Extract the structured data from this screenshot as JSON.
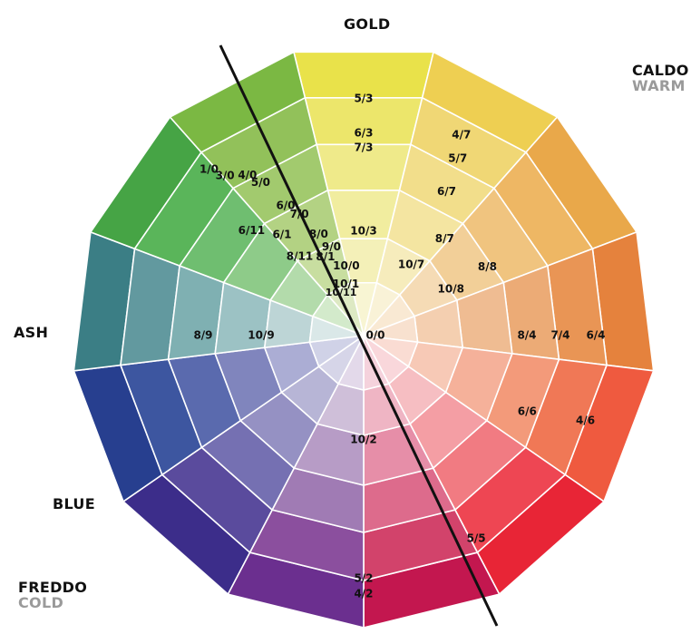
{
  "labels": {
    "gold": "GOLD",
    "caldo": "CALDO",
    "warm": "WARM",
    "ash": "ASH",
    "blue": "BLUE",
    "freddo": "FREDDO",
    "cold": "COLD"
  },
  "ring_colors": [
    [
      "#e9e24a",
      "#eecf52",
      "#e9a84a",
      "#e5823d",
      "#ef5a3f",
      "#e82536",
      "#c3174f",
      "#6b2f8f",
      "#3c2d8a",
      "#273f8f",
      "#3b7e85",
      "#46a445",
      "#7bb843"
    ],
    [
      "#ece66b",
      "#f0d775",
      "#eeb764",
      "#e99555",
      "#f07856",
      "#ee4653",
      "#d2436b",
      "#8b4f9e",
      "#5a4b9d",
      "#3d56a0",
      "#62999f",
      "#5ab55a",
      "#92c15a"
    ],
    [
      "#efea8a",
      "#f2de8b",
      "#f0c47f",
      "#ecab76",
      "#f39a7a",
      "#f17b82",
      "#dd6b8c",
      "#a07bb4",
      "#7570b2",
      "#5a6aae",
      "#7fb0b2",
      "#6fbe70",
      "#a2ca6e"
    ],
    [
      "#f1ed9f",
      "#f4e5a1",
      "#f2cf98",
      "#efbc92",
      "#f5b19a",
      "#f49ea4",
      "#e68ea8",
      "#b79cc6",
      "#9591c3",
      "#8085bd",
      "#9cc2c4",
      "#8ecb89",
      "#b3d283"
    ],
    [
      "#f4f0b8",
      "#f6ecbc",
      "#f5dbb5",
      "#f4cfb0",
      "#f7c9b6",
      "#f6bec2",
      "#efb5c4",
      "#cfbfd9",
      "#b7b5d6",
      "#abadd4",
      "#bdd5d6",
      "#b3dbab",
      "#c8dea0"
    ],
    [
      "#f8f5d3",
      "#f9f2d7",
      "#f9e9d3",
      "#f8e1cf",
      "#fadcd3",
      "#f9d7db",
      "#f5d2dc",
      "#e3d9ea",
      "#d6d5e8",
      "#d0d2e7",
      "#dae8e8",
      "#d3eacb",
      "#dde9c3"
    ]
  ],
  "ring_radii": [
    322,
    270,
    217,
    165,
    110,
    60
  ],
  "codes": [
    {
      "t": "1/0",
      "a": -43,
      "r": 250
    },
    {
      "t": "3/0",
      "a": -41,
      "r": 233
    },
    {
      "t": "4/0",
      "a": -36,
      "r": 218
    },
    {
      "t": "5/0",
      "a": -34,
      "r": 203
    },
    {
      "t": "6/0",
      "a": -31,
      "r": 167
    },
    {
      "t": "7/0",
      "a": -28,
      "r": 151
    },
    {
      "t": "8/0",
      "a": -24,
      "r": 122
    },
    {
      "t": "9/0",
      "a": -20,
      "r": 104
    },
    {
      "t": "10/0",
      "a": -14,
      "r": 79
    },
    {
      "t": "10/1",
      "a": -19,
      "r": 60
    },
    {
      "t": "10/11",
      "a": -28,
      "r": 53
    },
    {
      "t": "8/1",
      "a": -26,
      "r": 96
    },
    {
      "t": "6/1",
      "a": -39,
      "r": 143
    },
    {
      "t": "6/11",
      "a": -47,
      "r": 169
    },
    {
      "t": "8/11",
      "a": -39,
      "r": 112
    },
    {
      "t": "5/3",
      "a": 0,
      "r": 261
    },
    {
      "t": "6/3",
      "a": 0,
      "r": 223
    },
    {
      "t": "7/3",
      "a": 0,
      "r": 207
    },
    {
      "t": "10/3",
      "a": 0,
      "r": 115
    },
    {
      "t": "4/7",
      "a": 26,
      "r": 246
    },
    {
      "t": "5/7",
      "a": 28,
      "r": 221
    },
    {
      "t": "6/7",
      "a": 30,
      "r": 183
    },
    {
      "t": "8/7",
      "a": 40,
      "r": 139
    },
    {
      "t": "10/7",
      "a": 34,
      "r": 94
    },
    {
      "t": "8/8",
      "a": 61,
      "r": 156
    },
    {
      "t": "10/8",
      "a": 62,
      "r": 109
    },
    {
      "t": "8/9",
      "a": -90,
      "r": 177
    },
    {
      "t": "10/9",
      "a": -90,
      "r": 113
    },
    {
      "t": "0/0",
      "a": 90,
      "r": 13
    },
    {
      "t": "8/4",
      "a": 90,
      "r": 180
    },
    {
      "t": "7/4",
      "a": 90,
      "r": 217
    },
    {
      "t": "6/4",
      "a": 90,
      "r": 256
    },
    {
      "t": "6/6",
      "a": 115,
      "r": 199
    },
    {
      "t": "4/6",
      "a": 111,
      "r": 262
    },
    {
      "t": "10/2",
      "a": 180,
      "r": 115
    },
    {
      "t": "5/5",
      "a": 151,
      "r": 256
    },
    {
      "t": "5/2",
      "a": 180,
      "r": 268
    },
    {
      "t": "4/2",
      "a": 180,
      "r": 285
    }
  ]
}
